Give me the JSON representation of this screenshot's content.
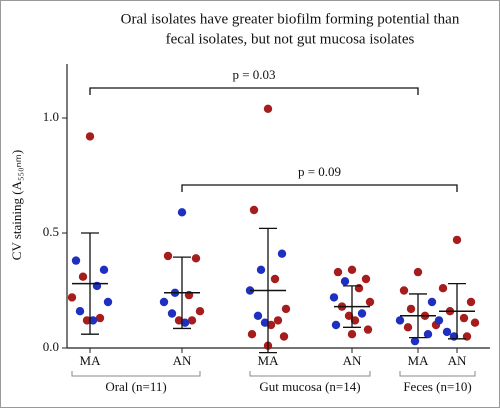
{
  "chart_data": {
    "type": "dot",
    "title_lines": [
      "Oral isolates have greater biofilm forming potential than",
      "fecal isolates, but not gut mucosa isolates"
    ],
    "ylabel": "CV staining (A₅₅₀ₙₘ)",
    "categories": [
      "MA",
      "AN",
      "MA",
      "AN",
      "MA",
      "AN"
    ],
    "groups": [
      "Oral (n=11)",
      "Gut mucosa (n=14)",
      "Feces (n=10)"
    ],
    "points": [
      [
        0.92,
        0.38,
        0.34,
        0.31,
        0.27,
        0.22,
        0.2,
        0.16,
        0.13,
        0.12,
        0.12
      ],
      [
        0.59,
        0.4,
        0.39,
        0.24,
        0.23,
        0.2,
        0.16,
        0.15,
        0.12,
        0.12,
        0.11
      ],
      [
        1.04,
        0.6,
        0.41,
        0.34,
        0.3,
        0.25,
        0.17,
        0.14,
        0.12,
        0.11,
        0.1,
        0.06,
        0.05,
        0.01
      ],
      [
        0.34,
        0.33,
        0.3,
        0.29,
        0.26,
        0.22,
        0.2,
        0.18,
        0.15,
        0.14,
        0.12,
        0.1,
        0.08,
        0.06
      ],
      [
        0.33,
        0.25,
        0.2,
        0.17,
        0.14,
        0.12,
        0.1,
        0.09,
        0.06,
        0.03
      ],
      [
        0.47,
        0.26,
        0.2,
        0.16,
        0.13,
        0.12,
        0.11,
        0.07,
        0.05,
        0.05
      ]
    ],
    "point_colors": [
      [
        "#a51d1d",
        "#1f2fc0",
        "#1f2fc0",
        "#a51d1d",
        "#1f2fc0",
        "#a51d1d",
        "#1f2fc0",
        "#1f2fc0",
        "#a51d1d",
        "#a51d1d",
        "#1f2fc0"
      ],
      [
        "#1f2fc0",
        "#a51d1d",
        "#a51d1d",
        "#1f2fc0",
        "#a51d1d",
        "#1f2fc0",
        "#a51d1d",
        "#1f2fc0",
        "#a51d1d",
        "#a51d1d",
        "#1f2fc0"
      ],
      [
        "#a51d1d",
        "#a51d1d",
        "#1f2fc0",
        "#1f2fc0",
        "#a51d1d",
        "#1f2fc0",
        "#a51d1d",
        "#1f2fc0",
        "#a51d1d",
        "#1f2fc0",
        "#a51d1d",
        "#a51d1d",
        "#a51d1d",
        "#a51d1d"
      ],
      [
        "#a51d1d",
        "#a51d1d",
        "#a51d1d",
        "#1f2fc0",
        "#a51d1d",
        "#1f2fc0",
        "#a51d1d",
        "#a51d1d",
        "#1f2fc0",
        "#a51d1d",
        "#a51d1d",
        "#1f2fc0",
        "#a51d1d",
        "#a51d1d"
      ],
      [
        "#a51d1d",
        "#a51d1d",
        "#1f2fc0",
        "#a51d1d",
        "#a51d1d",
        "#1f2fc0",
        "#a51d1d",
        "#a51d1d",
        "#1f2fc0",
        "#1f2fc0"
      ],
      [
        "#a51d1d",
        "#a51d1d",
        "#a51d1d",
        "#a51d1d",
        "#a51d1d",
        "#1f2fc0",
        "#a51d1d",
        "#1f2fc0",
        "#a51d1d",
        "#1f2fc0"
      ]
    ],
    "means": [
      0.28,
      0.24,
      0.25,
      0.18,
      0.14,
      0.16
    ],
    "sds": [
      0.22,
      0.155,
      0.27,
      0.09,
      0.095,
      0.12
    ],
    "comparisons": [
      {
        "label": "p = 0.03",
        "from": 0,
        "to": 4
      },
      {
        "label": "p = 0.09",
        "from": 1,
        "to": 5
      }
    ],
    "ylim": [
      0,
      1.2
    ],
    "yticks": [
      {
        "value": 0,
        "label": "0.0"
      },
      0.5,
      {
        "value": 1,
        "label": "1.0"
      }
    ]
  }
}
